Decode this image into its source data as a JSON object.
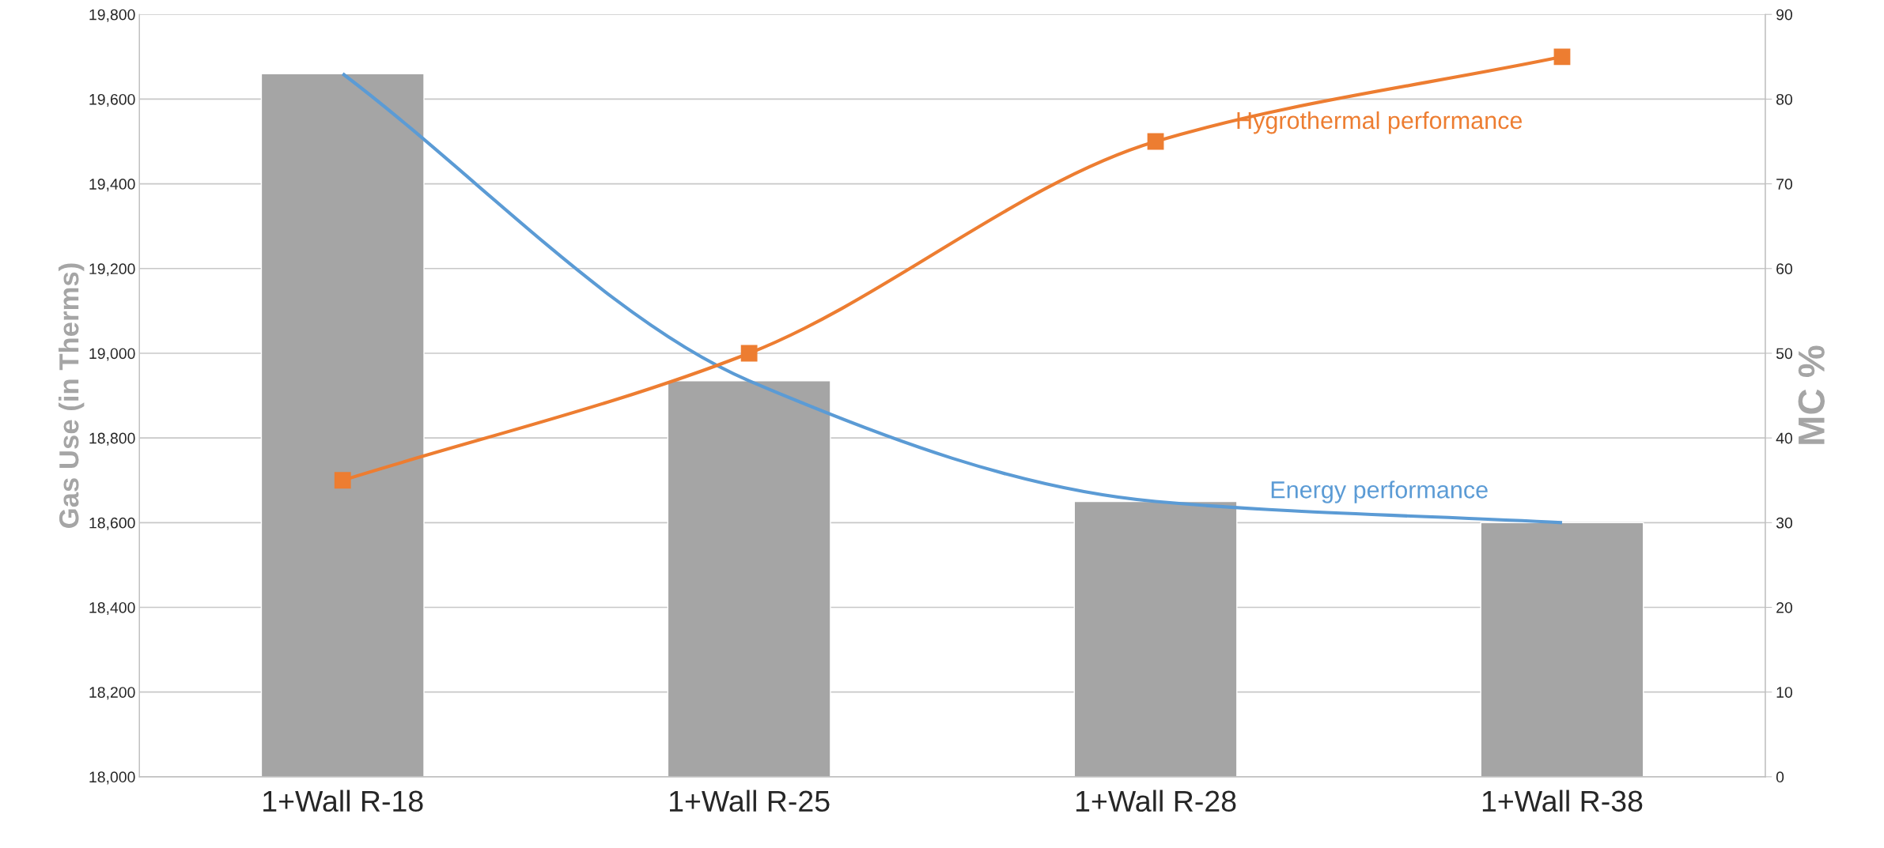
{
  "chart_data": {
    "type": "bar",
    "categories": [
      "1+Wall R-18",
      "1+Wall R-25",
      "1+Wall R-28",
      "1+Wall R-38"
    ],
    "ylabel": "Gas Use (in Therms)",
    "y2label": "MC %",
    "series": [
      {
        "color": "#a5a5a5",
        "values": [
          19660,
          18935,
          18650,
          18600
        ]
      },
      {
        "type": "line",
        "name": "Energy performance",
        "color": "#5b9bd5",
        "marker": "none",
        "values": [
          19660,
          18935,
          18650,
          18600
        ]
      },
      {
        "type": "line",
        "name": "Hygrothermal performance",
        "color": "#ed7d31",
        "marker": "square",
        "axis": "y2",
        "values": [
          35,
          50,
          75,
          85
        ]
      }
    ],
    "ylim": [
      18000,
      19800
    ],
    "yticks": [
      {
        "value": 18000,
        "label": "18,000"
      },
      {
        "value": 18200,
        "label": "18,200"
      },
      {
        "value": 18400,
        "label": "18,400"
      },
      {
        "value": 18600,
        "label": "18,600"
      },
      {
        "value": 18800,
        "label": "18,800"
      },
      {
        "value": 19000,
        "label": "19,000"
      },
      {
        "value": 19200,
        "label": "19,200"
      },
      {
        "value": 19400,
        "label": "19,400"
      },
      {
        "value": 19600,
        "label": "19,600"
      },
      {
        "value": 19800,
        "label": "19,800"
      }
    ],
    "y2lim": [
      0,
      90
    ],
    "y2ticks": [
      0,
      10,
      20,
      30,
      40,
      50,
      60,
      70,
      80,
      90
    ],
    "grid": "y",
    "legend": false
  }
}
